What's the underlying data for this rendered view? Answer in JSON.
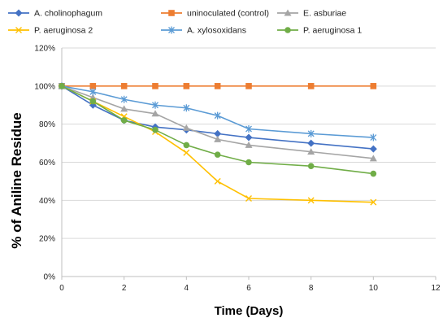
{
  "chart_data": {
    "type": "line",
    "xlabel": "Time (Days)",
    "ylabel": "% of Aniline Residue",
    "xlim": [
      0,
      12
    ],
    "ylim": [
      0,
      120
    ],
    "x_ticks": [
      "0",
      "2",
      "4",
      "6",
      "8",
      "10",
      "12"
    ],
    "y_ticks": [
      "0%",
      "20%",
      "40%",
      "60%",
      "80%",
      "100%",
      "120%"
    ],
    "grid": "horizontal",
    "legend_position": "top",
    "series": [
      {
        "name": "A. cholinophagum",
        "color": "#4472C4",
        "marker": "diamond",
        "x": [
          0,
          1,
          2,
          3,
          4,
          5,
          6,
          8,
          10
        ],
        "y": [
          100,
          90,
          82,
          78.5,
          77,
          75,
          73,
          70,
          67
        ]
      },
      {
        "name": "uninoculated (control)",
        "color": "#ED7D31",
        "marker": "square",
        "x": [
          0,
          1,
          2,
          3,
          4,
          5,
          6,
          8,
          10
        ],
        "y": [
          100,
          100,
          100,
          100,
          100,
          100,
          100,
          100,
          100
        ]
      },
      {
        "name": "E. asburiae",
        "color": "#A5A5A5",
        "marker": "triangle",
        "x": [
          0,
          1,
          2,
          3,
          4,
          5,
          6,
          8,
          10
        ],
        "y": [
          100,
          94,
          88,
          85.5,
          78,
          72,
          69,
          65.5,
          62
        ]
      },
      {
        "name": "P. aeruginosa 2",
        "color": "#FFC000",
        "marker": "x",
        "x": [
          0,
          1,
          2,
          3,
          4,
          5,
          6,
          8,
          10
        ],
        "y": [
          100,
          92,
          84,
          76,
          65,
          50,
          41,
          40,
          39
        ]
      },
      {
        "name": "A. xylosoxidans",
        "color": "#5B9BD5",
        "marker": "star",
        "x": [
          0,
          1,
          2,
          3,
          4,
          5,
          6,
          8,
          10
        ],
        "y": [
          100,
          97,
          93,
          90,
          88.5,
          84.5,
          77.5,
          75,
          73
        ]
      },
      {
        "name": "P. aeruginosa 1",
        "color": "#70AD47",
        "marker": "circle",
        "x": [
          0,
          1,
          2,
          3,
          4,
          5,
          6,
          8,
          10
        ],
        "y": [
          100,
          92,
          82,
          77,
          69,
          64,
          60,
          58,
          54
        ]
      }
    ]
  }
}
